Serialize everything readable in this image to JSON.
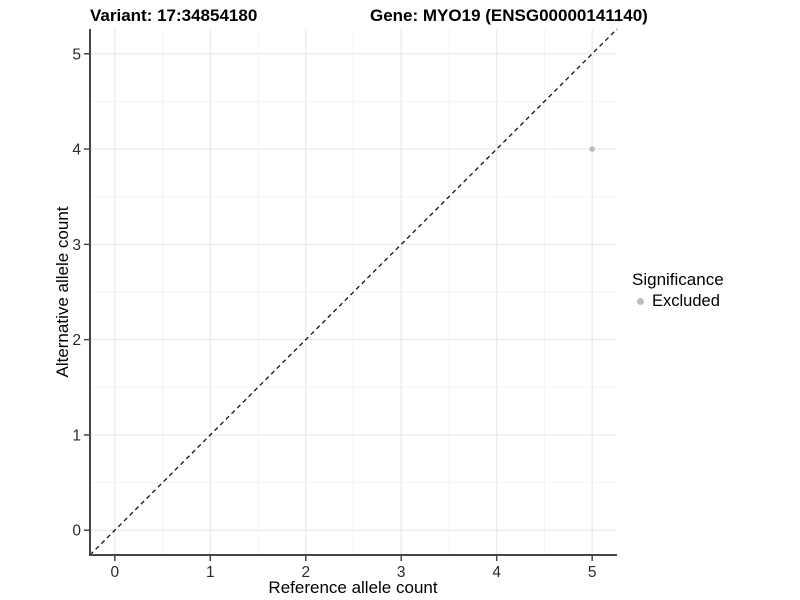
{
  "chart_data": {
    "type": "scatter",
    "titles": {
      "left": "Variant: 17:34854180",
      "right": "Gene: MYO19 (ENSG00000141140)"
    },
    "xlabel": "Reference allele count",
    "ylabel": "Alternative allele count",
    "xlim": [
      -0.26,
      5.26
    ],
    "ylim": [
      -0.26,
      5.26
    ],
    "x_ticks": [
      0,
      1,
      2,
      3,
      4,
      5
    ],
    "y_ticks": [
      0,
      1,
      2,
      3,
      4,
      5
    ],
    "x_minor": [
      0.5,
      1.5,
      2.5,
      3.5,
      4.5
    ],
    "y_minor": [
      0.5,
      1.5,
      2.5,
      3.5,
      4.5
    ],
    "grid": true,
    "identity_line": {
      "type": "y=x",
      "style": "dashed",
      "color": "#141414"
    },
    "series": [
      {
        "name": "Excluded",
        "color": "#bcbcbc",
        "points": [
          {
            "x": 5,
            "y": 4
          }
        ]
      }
    ],
    "legend": {
      "title": "Significance",
      "position": "right",
      "entries": [
        {
          "label": "Excluded",
          "color": "#bcbcbc"
        }
      ]
    }
  },
  "colors": {
    "background": "#ffffff",
    "axis": "#464646",
    "tick_label": "#2b2b2b",
    "grid_major": "#e9e9e9",
    "grid_minor": "#f3f3f3"
  }
}
